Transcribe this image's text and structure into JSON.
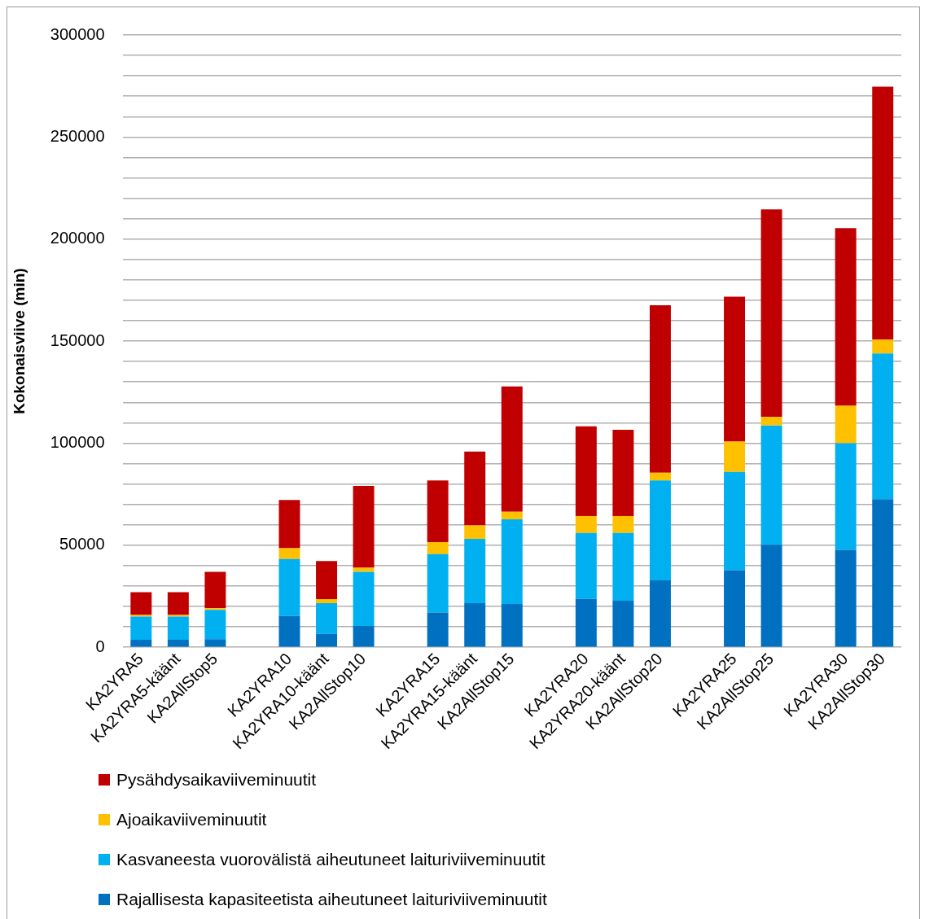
{
  "chart_data": {
    "type": "bar",
    "stacked": true,
    "ylabel": "Kokonaisviive (min)",
    "categories": [
      "KA2YRA5",
      "KA2YRA5-käänt",
      "KA2AllStop5",
      null,
      "KA2YRA10",
      "KA2YRA10-käänt",
      "KA2AllStop10",
      null,
      "KA2YRA15",
      "KA2YRA15-käänt",
      "KA2AllStop15",
      null,
      "KA2YRA20",
      "KA2YRA20-käänt",
      "KA2AllStop20",
      null,
      "KA2YRA25",
      "KA2AllStop25",
      null,
      "KA2YRA30",
      "KA2AllStop30"
    ],
    "series": [
      {
        "name": "Rajallisesta kapasiteetista aiheutuneet laituriviiveminuutit",
        "color": "#0070c0",
        "values": [
          3700,
          3700,
          4000,
          null,
          15300,
          6600,
          10400,
          null,
          17000,
          21600,
          21200,
          null,
          23700,
          22800,
          32800,
          null,
          37800,
          50200,
          null,
          47700,
          72600
        ]
      },
      {
        "name": "Kasvaneesta vuorovälistä aiheutuneet laituriviiveminuutit",
        "color": "#00b0f0",
        "values": [
          11300,
          11300,
          14300,
          null,
          27900,
          15000,
          26600,
          null,
          28600,
          31500,
          41500,
          null,
          32300,
          33200,
          48900,
          null,
          48100,
          58500,
          null,
          52300,
          71400
        ]
      },
      {
        "name": "Ajoaikaviiveminuutit",
        "color": "#ffc000",
        "values": [
          800,
          800,
          800,
          null,
          5300,
          2000,
          2000,
          null,
          5900,
          6600,
          3700,
          null,
          8300,
          8300,
          3800,
          null,
          14900,
          4200,
          null,
          18300,
          6800
        ]
      },
      {
        "name": "Pysähdysaikaviiveminuutit",
        "color": "#c00000",
        "values": [
          11200,
          11200,
          17900,
          null,
          23700,
          18700,
          40000,
          null,
          30200,
          36200,
          61400,
          null,
          44000,
          42300,
          82100,
          null,
          71000,
          101600,
          null,
          87100,
          123900
        ]
      }
    ],
    "ylim": [
      0,
      300000
    ],
    "yticks": [
      0,
      {
        "value": 10000,
        "label": null
      },
      {
        "value": 20000,
        "label": null
      },
      {
        "value": 30000,
        "label": null
      },
      {
        "value": 40000,
        "label": null
      },
      50000,
      {
        "value": 60000,
        "label": null
      },
      {
        "value": 70000,
        "label": null
      },
      {
        "value": 80000,
        "label": null
      },
      {
        "value": 90000,
        "label": null
      },
      100000,
      {
        "value": 110000,
        "label": null
      },
      {
        "value": 120000,
        "label": null
      },
      {
        "value": 130000,
        "label": null
      },
      {
        "value": 140000,
        "label": null
      },
      150000,
      {
        "value": 160000,
        "label": null
      },
      {
        "value": 170000,
        "label": null
      },
      {
        "value": 180000,
        "label": null
      },
      {
        "value": 190000,
        "label": null
      },
      200000,
      {
        "value": 210000,
        "label": null
      },
      {
        "value": 220000,
        "label": null
      },
      {
        "value": 230000,
        "label": null
      },
      {
        "value": 240000,
        "label": null
      },
      250000,
      {
        "value": 260000,
        "label": null
      },
      {
        "value": 270000,
        "label": null
      },
      {
        "value": 280000,
        "label": null
      },
      {
        "value": 290000,
        "label": null
      },
      300000
    ],
    "grid": "y",
    "legend": "bottom"
  }
}
